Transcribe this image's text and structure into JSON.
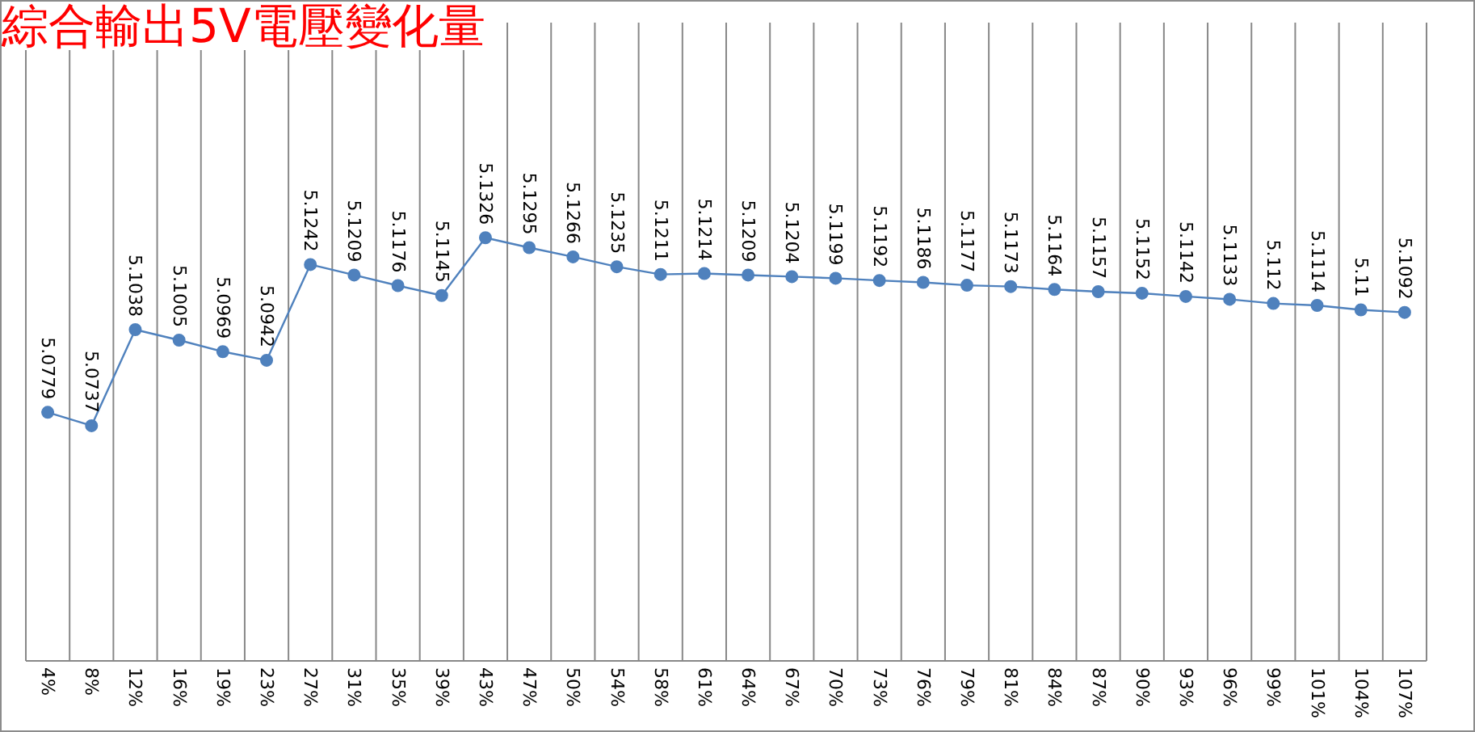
{
  "chart_data": {
    "type": "line",
    "title": "綜合輸出5V電壓變化量",
    "categories": [
      "4%",
      "8%",
      "12%",
      "16%",
      "19%",
      "23%",
      "27%",
      "31%",
      "35%",
      "39%",
      "43%",
      "47%",
      "50%",
      "54%",
      "58%",
      "61%",
      "64%",
      "67%",
      "70%",
      "73%",
      "76%",
      "79%",
      "81%",
      "84%",
      "87%",
      "90%",
      "93%",
      "96%",
      "99%",
      "101%",
      "104%",
      "107%"
    ],
    "values": [
      5.0779,
      5.0737,
      5.1038,
      5.1005,
      5.0969,
      5.0942,
      5.1242,
      5.1209,
      5.1176,
      5.1145,
      5.1326,
      5.1295,
      5.1266,
      5.1235,
      5.1211,
      5.1214,
      5.1209,
      5.1204,
      5.1199,
      5.1192,
      5.1186,
      5.1177,
      5.1173,
      5.1164,
      5.1157,
      5.1152,
      5.1142,
      5.1133,
      5.112,
      5.1114,
      5.11,
      5.1092
    ],
    "color": "#4f81bd",
    "ylim": [
      5,
      5.2
    ],
    "grid": "x",
    "marker": "circle",
    "line_style": "solid",
    "data_labels": true,
    "tick_labels": "x"
  }
}
